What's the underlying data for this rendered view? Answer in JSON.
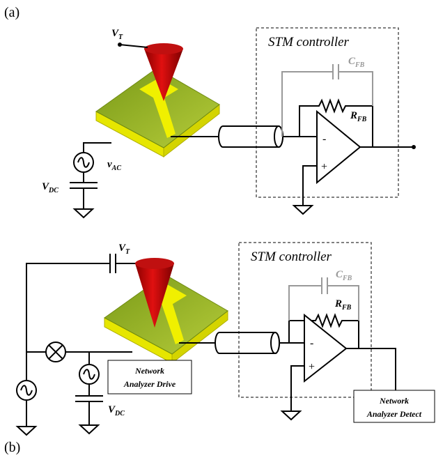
{
  "panel_a": {
    "label": "(a)",
    "tip_voltage": {
      "main": "V",
      "sub": "T"
    },
    "controller_title": "STM controller",
    "feedback_capacitor": {
      "main": "C",
      "sub": "FB"
    },
    "feedback_resistor": {
      "main": "R",
      "sub": "FB"
    },
    "ac_voltage": {
      "main": "v",
      "sub": "AC"
    },
    "dc_voltage": {
      "main": "V",
      "sub": "DC"
    },
    "opamp_inverting": "-",
    "opamp_noninverting": "+"
  },
  "panel_b": {
    "label": "(b)",
    "tip_voltage": {
      "main": "V",
      "sub": "T"
    },
    "controller_title": "STM controller",
    "feedback_capacitor": {
      "main": "C",
      "sub": "FB"
    },
    "feedback_resistor": {
      "main": "R",
      "sub": "FB"
    },
    "dc_voltage": {
      "main": "V",
      "sub": "DC"
    },
    "opamp_inverting": "-",
    "opamp_noninverting": "+",
    "drive_box": [
      "Network",
      "Analyzer Drive"
    ],
    "detect_box": [
      "Network",
      "Analyzer Detect"
    ]
  }
}
